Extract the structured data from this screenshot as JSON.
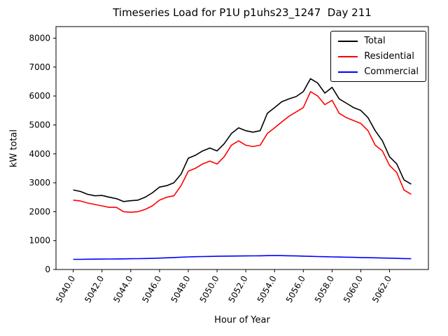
{
  "chart_data": {
    "type": "line",
    "title": "Timeseries Load for P1U p1uhs23_1247  Day 211",
    "xlabel": "Hour of Year",
    "ylabel": "kW total",
    "legend_position": "upper right",
    "grid": false,
    "xlim": [
      5038.8,
      5064.7
    ],
    "ylim": [
      0,
      8400
    ],
    "xticks": [
      5040,
      5042,
      5044,
      5046,
      5048,
      5050,
      5052,
      5054,
      5056,
      5058,
      5060,
      5062
    ],
    "yticks": [
      0,
      1000,
      2000,
      3000,
      4000,
      5000,
      6000,
      7000,
      8000
    ],
    "x": [
      5040.0,
      5040.5,
      5041.0,
      5041.5,
      5042.0,
      5042.5,
      5043.0,
      5043.5,
      5044.0,
      5044.5,
      5045.0,
      5045.5,
      5046.0,
      5046.5,
      5047.0,
      5047.5,
      5048.0,
      5048.5,
      5049.0,
      5049.5,
      5050.0,
      5050.5,
      5051.0,
      5051.5,
      5052.0,
      5052.5,
      5053.0,
      5053.5,
      5054.0,
      5054.5,
      5055.0,
      5055.5,
      5056.0,
      5056.5,
      5057.0,
      5057.5,
      5058.0,
      5058.5,
      5059.0,
      5059.5,
      5060.0,
      5060.5,
      5061.0,
      5061.5,
      5062.0,
      5062.5,
      5063.0,
      5063.5
    ],
    "series": [
      {
        "name": "Total",
        "color": "#000000",
        "values": [
          2750,
          2700,
          2600,
          2550,
          2560,
          2500,
          2450,
          2350,
          2380,
          2400,
          2500,
          2650,
          2850,
          2900,
          3000,
          3300,
          3850,
          3950,
          4100,
          4200,
          4100,
          4350,
          4700,
          4900,
          4800,
          4750,
          4800,
          5400,
          5600,
          5800,
          5900,
          5980,
          6150,
          6600,
          6450,
          6100,
          6300,
          5900,
          5750,
          5600,
          5500,
          5250,
          4800,
          4450,
          3900,
          3650,
          3100,
          2950
        ]
      },
      {
        "name": "Residential",
        "color": "#ff0000",
        "values": [
          2400,
          2370,
          2300,
          2250,
          2200,
          2150,
          2150,
          2000,
          1980,
          2000,
          2080,
          2200,
          2400,
          2500,
          2550,
          2900,
          3400,
          3500,
          3650,
          3750,
          3650,
          3900,
          4300,
          4450,
          4300,
          4250,
          4300,
          4700,
          4900,
          5100,
          5300,
          5450,
          5600,
          6150,
          6000,
          5700,
          5850,
          5400,
          5250,
          5150,
          5050,
          4800,
          4300,
          4100,
          3600,
          3350,
          2750,
          2600
        ]
      },
      {
        "name": "Commercial",
        "color": "#0000ff",
        "values": [
          350,
          352,
          355,
          358,
          360,
          362,
          365,
          368,
          372,
          376,
          380,
          385,
          395,
          405,
          415,
          425,
          435,
          442,
          448,
          452,
          458,
          462,
          465,
          468,
          470,
          472,
          475,
          480,
          482,
          480,
          475,
          470,
          462,
          455,
          448,
          442,
          436,
          430,
          425,
          420,
          415,
          410,
          405,
          398,
          392,
          386,
          378,
          372
        ]
      }
    ]
  }
}
